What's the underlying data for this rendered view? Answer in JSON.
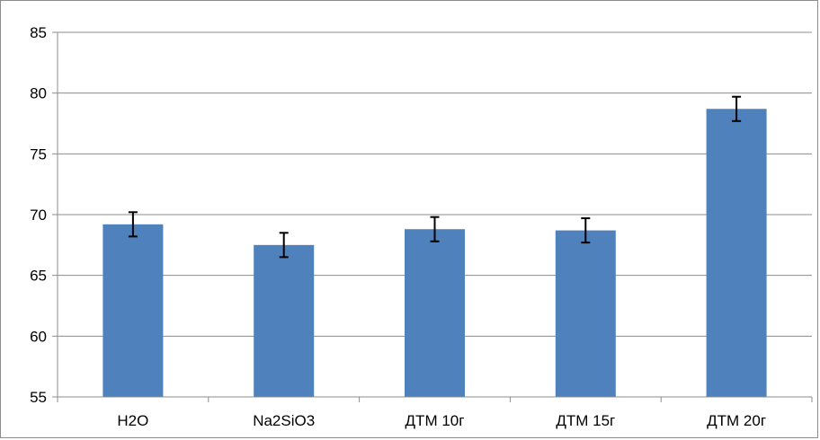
{
  "chart_data": {
    "type": "bar",
    "title": "",
    "xlabel": "",
    "ylabel": "",
    "categories": [
      "H2O",
      "Na2SiO3",
      "ДТМ 10г",
      "ДТМ 15г",
      "ДТМ 20г"
    ],
    "values": [
      69.2,
      67.5,
      68.8,
      68.7,
      78.7
    ],
    "errors": [
      1.0,
      1.0,
      1.0,
      1.0,
      1.0
    ],
    "ylim": [
      55,
      85
    ],
    "yticks": [
      55,
      60,
      65,
      70,
      75,
      80,
      85
    ],
    "grid": true,
    "legend": "none",
    "bar_color": "#4f81bd",
    "grid_color": "#8c8c8c",
    "error_bar_color": "#000000"
  }
}
